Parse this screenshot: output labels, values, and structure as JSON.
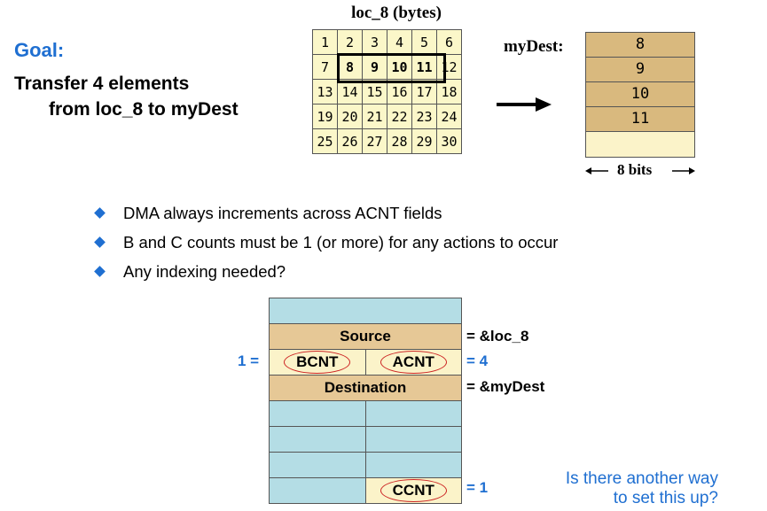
{
  "goal": {
    "label": "Goal:",
    "line1": "Transfer 4 elements",
    "line2": "from loc_8 to myDest"
  },
  "loc8": {
    "title": "loc_8 (bytes)",
    "rows": [
      [
        "1",
        "2",
        "3",
        "4",
        "5",
        "6"
      ],
      [
        "7",
        "8",
        "9",
        "10",
        "11",
        "12"
      ],
      [
        "13",
        "14",
        "15",
        "16",
        "17",
        "18"
      ],
      [
        "19",
        "20",
        "21",
        "22",
        "23",
        "24"
      ],
      [
        "25",
        "26",
        "27",
        "28",
        "29",
        "30"
      ]
    ],
    "highlighted": [
      "8",
      "9",
      "10",
      "11"
    ]
  },
  "mydest": {
    "label": "myDest:",
    "cells": [
      "8",
      "9",
      "10",
      "11"
    ],
    "width_label": "8 bits"
  },
  "bullets": [
    "DMA always increments across ACNT fields",
    "B and C counts must be 1 (or more) for any actions to occur",
    "Any indexing needed?"
  ],
  "params": {
    "source_label": "Source",
    "source_value": "= &loc_8",
    "bcnt_label": "BCNT",
    "acnt_label": "ACNT",
    "bcnt_value": "1 =",
    "acnt_value": "= 4",
    "dest_label": "Destination",
    "dest_value": "= &myDest",
    "ccnt_label": "CCNT",
    "ccnt_value": "= 1"
  },
  "question": {
    "line1": "Is there another way",
    "line2": "to set this up?"
  },
  "colors": {
    "accent_blue": "#1f6fd1",
    "oval_red": "#cc2222",
    "param_teal": "#b4dde5",
    "param_tan": "#e6c896",
    "cream": "#fbf3c9"
  }
}
